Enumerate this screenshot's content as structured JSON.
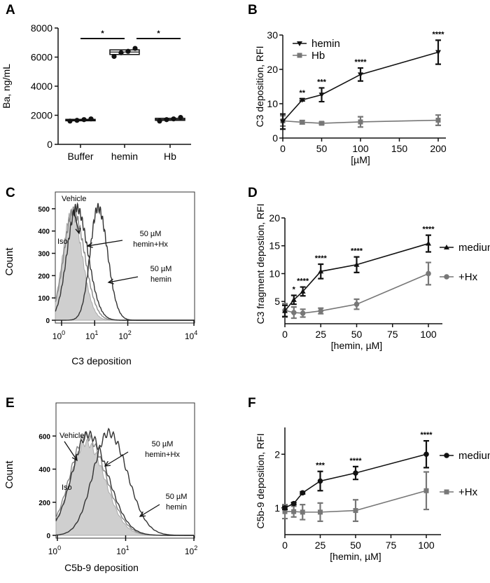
{
  "colors": {
    "black": "#111111",
    "gray": "#777777",
    "fill_gray": "#cfcfcf"
  },
  "chart_data": [
    {
      "panel": "A",
      "type": "box",
      "ylabel": "Ba, ng/mL",
      "xlabel": "",
      "ylim": [
        0,
        8000
      ],
      "yticks": [
        "0",
        "2000",
        "4000",
        "6000",
        "8000"
      ],
      "categories": [
        "Buffer",
        "hemin",
        "Hb"
      ],
      "points": [
        [
          1600,
          1650,
          1700,
          1750
        ],
        [
          6050,
          6300,
          6400,
          6600
        ],
        [
          1600,
          1700,
          1750,
          1850
        ]
      ],
      "box": [
        [
          1620,
          1660,
          1720
        ],
        [
          6180,
          6350,
          6500
        ],
        [
          1650,
          1720,
          1790
        ]
      ],
      "significance": [
        {
          "from": 0,
          "to": 1,
          "label": "*"
        },
        {
          "from": 1,
          "to": 2,
          "label": "*"
        }
      ]
    },
    {
      "panel": "B",
      "type": "line",
      "xlabel": "[µM]",
      "ylabel": "C3 deposition, RFI",
      "xlim": [
        0,
        200
      ],
      "ylim": [
        0,
        30
      ],
      "xticks": [
        "0",
        "50",
        "100",
        "150",
        "200"
      ],
      "yticks": [
        "0",
        "10",
        "20",
        "30"
      ],
      "legend_position": "top-left",
      "x": [
        0,
        25,
        50,
        100,
        200
      ],
      "series": [
        {
          "name": "hemin",
          "marker": "triangle-down",
          "color": "#111111",
          "y": [
            4.8,
            11.1,
            12.6,
            18.5,
            25.0
          ],
          "err": [
            2.2,
            0.3,
            2.0,
            1.9,
            3.5
          ],
          "stars": [
            "",
            "**",
            "***",
            "****",
            "****"
          ]
        },
        {
          "name": "Hb",
          "marker": "square",
          "color": "#777777",
          "y": [
            5.0,
            4.6,
            4.3,
            4.7,
            5.2
          ],
          "err": [
            1.5,
            0.5,
            0.4,
            1.5,
            1.5
          ],
          "stars": [
            "",
            "",
            "",
            "",
            ""
          ]
        }
      ]
    },
    {
      "panel": "C",
      "type": "histogram",
      "xlabel": "C3 deposition",
      "ylabel": "Count",
      "xscale": "log",
      "xlim_log10": [
        -0.19,
        4.02
      ],
      "ylim": [
        0,
        575
      ],
      "xticks": [
        {
          "exp": "0"
        },
        {
          "exp": "1"
        },
        {
          "exp": "2"
        },
        {
          "exp": "4"
        }
      ],
      "yticks": [
        "0",
        "100",
        "200",
        "300",
        "400",
        "500"
      ],
      "curves": [
        {
          "name": "Iso",
          "peak_log10": 0.3,
          "peak_count": 480,
          "width_log10": 0.28,
          "style": "filled"
        },
        {
          "name": "Vehicle",
          "peak_log10": 0.35,
          "peak_count": 490,
          "width_log10": 0.3,
          "style": "gray"
        },
        {
          "name": "50 µM hemin+Hx",
          "peak_log10": 0.45,
          "peak_count": 505,
          "width_log10": 0.3,
          "style": "dark"
        },
        {
          "name": "50 µM hemin",
          "peak_log10": 1.1,
          "peak_count": 505,
          "width_log10": 0.25,
          "style": "dark"
        }
      ],
      "annotations": {
        "vehicle": "Vehicle",
        "iso": "Iso",
        "hx_line1": "50 µM",
        "hx_line2": "hemin+Hx",
        "hemin_line1": "50 µM",
        "hemin_line2": "hemin"
      }
    },
    {
      "panel": "D",
      "type": "line",
      "xlabel": "[hemin, µM]",
      "ylabel": "C3 fragment depostion, RFI",
      "xlim": [
        0,
        100
      ],
      "ylim": [
        1,
        20
      ],
      "xticks": [
        "0",
        "25",
        "50",
        "75",
        "100"
      ],
      "yticks": [
        "5",
        "10",
        "15",
        "20"
      ],
      "legend_position": "right",
      "x": [
        0,
        6.25,
        12.5,
        25,
        50,
        100
      ],
      "series": [
        {
          "name": "medium",
          "marker": "triangle-up",
          "color": "#111111",
          "y": [
            3.3,
            5.3,
            6.8,
            10.4,
            11.6,
            15.4
          ],
          "err": [
            1.0,
            0.8,
            0.8,
            1.3,
            1.4,
            1.5
          ],
          "stars": [
            "",
            "*",
            "****",
            "****",
            "****",
            "****"
          ]
        },
        {
          "name": "+Hx",
          "marker": "circle",
          "color": "#777777",
          "y": [
            3.4,
            3.0,
            2.9,
            3.3,
            4.5,
            10.0
          ],
          "err": [
            1.2,
            1.0,
            0.7,
            0.5,
            0.9,
            2.0
          ],
          "stars": [
            "",
            "",
            "",
            "",
            "",
            ""
          ]
        }
      ]
    },
    {
      "panel": "E",
      "type": "histogram",
      "xlabel": "C5b-9 deposition",
      "ylabel": "Count",
      "xscale": "log",
      "xlim_log10": [
        -0.02,
        2.01
      ],
      "ylim": [
        0,
        800
      ],
      "xticks": [
        {
          "exp": "0"
        },
        {
          "exp": "1"
        },
        {
          "exp": "2"
        }
      ],
      "yticks": [
        "0",
        "200",
        "400",
        "600"
      ],
      "curves": [
        {
          "name": "Iso",
          "peak_log10": 0.42,
          "peak_count": 560,
          "width_log10": 0.24,
          "style": "filled"
        },
        {
          "name": "Vehicle",
          "peak_log10": 0.42,
          "peak_count": 600,
          "width_log10": 0.25,
          "style": "gray"
        },
        {
          "name": "50 µM hemin+Hx",
          "peak_log10": 0.45,
          "peak_count": 610,
          "width_log10": 0.25,
          "style": "dark"
        },
        {
          "name": "50 µM hemin",
          "peak_log10": 0.75,
          "peak_count": 620,
          "width_log10": 0.24,
          "style": "dark"
        }
      ],
      "annotations": {
        "vehicle": "Vehicle",
        "iso": "Iso",
        "hx_line1": "50 µM",
        "hx_line2": "hemin+Hx",
        "hemin_line1": "50 µM",
        "hemin_line2": "hemin"
      }
    },
    {
      "panel": "F",
      "type": "line",
      "xlabel": "[hemin, µM]",
      "ylabel": "C5b-9 deposition, RFI",
      "xlim": [
        0,
        100
      ],
      "ylim": [
        0.5,
        2.5
      ],
      "xticks": [
        "0",
        "25",
        "50",
        "75",
        "100"
      ],
      "yticks": [
        "1",
        "2"
      ],
      "legend_position": "right",
      "x": [
        0,
        6.25,
        12.5,
        25,
        50,
        100
      ],
      "series": [
        {
          "name": "medium",
          "marker": "circle",
          "color": "#111111",
          "y": [
            1.0,
            1.08,
            1.28,
            1.5,
            1.65,
            2.0
          ],
          "err": [
            0.03,
            0.02,
            0.02,
            0.18,
            0.12,
            0.25
          ],
          "stars": [
            "",
            "",
            "",
            "***",
            "****",
            "****"
          ]
        },
        {
          "name": "+Hx",
          "marker": "square",
          "color": "#777777",
          "y": [
            0.93,
            0.93,
            0.92,
            0.92,
            0.95,
            1.32
          ],
          "err": [
            0.13,
            0.1,
            0.14,
            0.17,
            0.2,
            0.35
          ],
          "stars": [
            "",
            "",
            "",
            "",
            "",
            ""
          ]
        }
      ]
    }
  ]
}
